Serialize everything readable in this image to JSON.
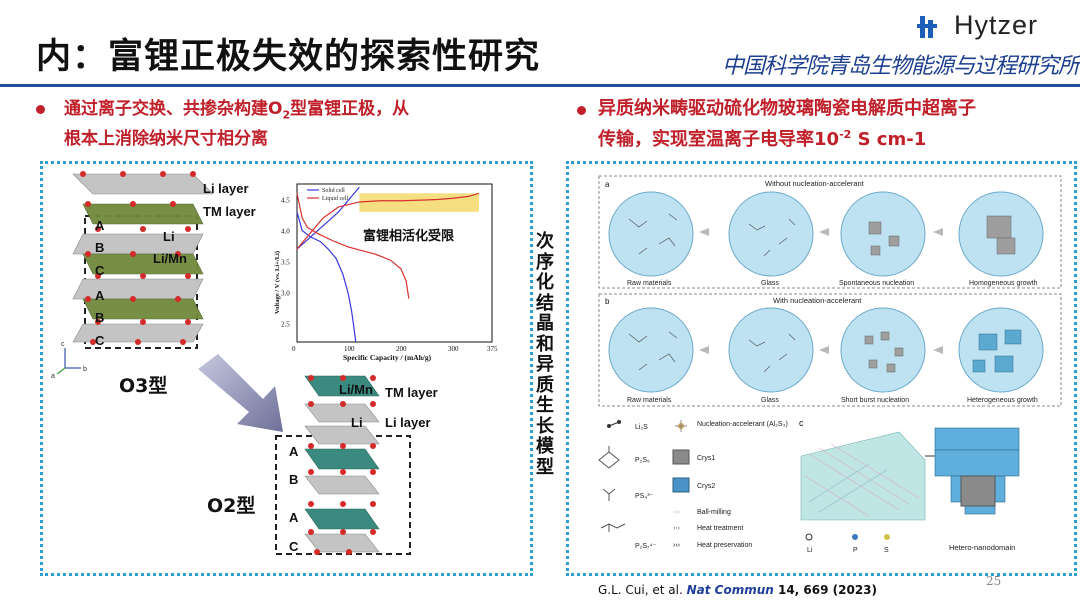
{
  "slide": {
    "title": "内：富锂正极失效的探索性研究",
    "logo_text": "Hytzer",
    "institution": "中国科学院青岛生物能源与过程研究所",
    "page_number": "25"
  },
  "left": {
    "bullet_line1": "通过离子交换、共掺杂构建O",
    "bullet_sub": "2",
    "bullet_line1_end": "型富锂正极，从",
    "bullet_line2": "根本上消除纳米尺寸相分离",
    "o3": {
      "li_layer": "Li layer",
      "tm_layer": "TM layer",
      "li": "Li",
      "li_mn": "Li/Mn",
      "stack": [
        "A",
        "B",
        "C",
        "A",
        "B",
        "C"
      ],
      "label": "O3型"
    },
    "o2": {
      "li_mn": "Li/Mn",
      "tm_layer": "TM layer",
      "li": "Li",
      "li_layer": "Li layer",
      "stack": [
        "A",
        "B",
        "A",
        "C"
      ],
      "label": "O2型"
    },
    "axes": {
      "c": "c",
      "a": "a",
      "b": "b"
    },
    "chart_data": {
      "type": "line",
      "annotation": "富锂相活化受限",
      "xlabel": "Specific Capacity / (mAh/g)",
      "ylabel": "Voltage / V (vs. Li+/Li)",
      "xticks": [
        "0",
        "100",
        "200",
        "300",
        "375"
      ],
      "yticks": [
        "2.5",
        "3.0",
        "3.5",
        "4.0",
        "4.5"
      ],
      "xlim": [
        0,
        375
      ],
      "ylim": [
        2.2,
        4.75
      ],
      "series": [
        {
          "name": "Solid cell",
          "color": "#3a3adf",
          "x": [
            0,
            10,
            25,
            45,
            60,
            75,
            88,
            98,
            105,
            110,
            113
          ],
          "y": [
            4.3,
            4.0,
            3.9,
            3.82,
            3.7,
            3.55,
            3.3,
            3.0,
            2.7,
            2.4,
            2.2
          ]
        },
        {
          "name": "Solid cell",
          "color": "#3a3adf",
          "x": [
            0,
            20,
            40,
            60,
            80,
            95,
            110,
            120
          ],
          "y": [
            3.7,
            3.85,
            4.0,
            4.15,
            4.3,
            4.45,
            4.6,
            4.7
          ]
        },
        {
          "name": "Liquid cell",
          "color": "#d93030",
          "x": [
            0,
            5,
            10,
            20,
            40,
            70,
            100,
            150,
            180,
            200,
            210,
            215
          ],
          "y": [
            4.6,
            4.4,
            4.2,
            4.05,
            3.95,
            3.83,
            3.73,
            3.62,
            3.52,
            3.38,
            3.18,
            2.9
          ]
        },
        {
          "name": "Liquid cell",
          "color": "#d93030",
          "x": [
            0,
            20,
            50,
            80,
            120,
            160,
            200,
            240,
            270,
            300,
            330,
            350
          ],
          "y": [
            3.7,
            3.9,
            4.2,
            4.38,
            4.46,
            4.48,
            4.48,
            4.49,
            4.5,
            4.52,
            4.55,
            4.6
          ]
        }
      ],
      "highlight": {
        "x": [
          120,
          350
        ],
        "y": [
          4.3,
          4.6
        ],
        "color": "#f5d96a"
      }
    }
  },
  "right": {
    "bullet_line1": "异质纳米畴驱动硫化物玻璃陶瓷电解质中超离子",
    "bullet_line2_a": "传输，实现室温离子电导率10",
    "bullet_sup": "-2",
    "bullet_line2_b": " S cm-1",
    "vertical_label": "次序化结晶和异质生长模型",
    "panel_a": {
      "tag": "a",
      "title": "Without nucleation-accelerant",
      "labels": [
        "Raw materials",
        "Glass",
        "Spontaneous nucleation",
        "Homogeneous growth"
      ]
    },
    "panel_b": {
      "tag": "b",
      "title": "With nucleation-accelerant",
      "labels": [
        "Raw materials",
        "Glass",
        "Short burst nucleation",
        "Heterogeneous growth"
      ]
    },
    "legend": {
      "li2s": "Li₂S",
      "p2s5": "P₂S₅",
      "ps4": "PS₄³⁻",
      "p2s7": "P₂S₇⁴⁻",
      "nucleation": "Nucleation-accelerant (Al₂S₃)",
      "crys1": "Crys1",
      "crys2": "Crys2",
      "ball": "Ball-milling",
      "heat_t": "Heat treatment",
      "heat_p": "Heat preservation"
    },
    "panel_c": {
      "tag": "c",
      "atoms": [
        "Li",
        "P",
        "S"
      ],
      "label": "Hetero-nanodomain"
    },
    "caption_authors": "G.L. Cui, et al. ",
    "caption_journal": "Nat Commun",
    "caption_rest": " 14, 669 (2023)"
  },
  "colors": {
    "accent_red": "#c0202a",
    "rule_blue": "#1f4e9c",
    "dotted_border": "#2c9fd0",
    "tm_green": "#6f8a3a",
    "o2_teal": "#3a8a80",
    "highlight": "#f5d96a"
  }
}
